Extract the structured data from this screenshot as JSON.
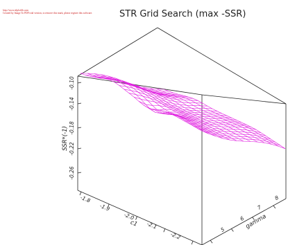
{
  "watermark": {
    "line1": "http://www.stlplotlib.com",
    "line2": "Created by Image To PDF trial version, to remove this mark, please register this software."
  },
  "chart_data": {
    "type": "surface",
    "title": "STR Grid Search (max -SSR)",
    "x_axis": {
      "label": "c1",
      "ticks": [
        "-1.8",
        "-1.9",
        "-2.0",
        "-2.1",
        "-2.2"
      ],
      "range": [
        -2.25,
        -1.75
      ]
    },
    "y_axis": {
      "label": "gamma",
      "ticks": [
        "5",
        "6",
        "7",
        "8"
      ],
      "range": [
        3,
        9
      ]
    },
    "z_axis": {
      "label": "SSR*(-1)",
      "ticks": [
        "-0.10",
        "-0.14",
        "-0.18",
        "-0.22",
        "-0.26"
      ],
      "range": [
        -0.28,
        -0.08
      ]
    },
    "mesh_color": "#e020e0",
    "grid": {
      "c1_values": 26,
      "gamma_values": 13
    }
  }
}
